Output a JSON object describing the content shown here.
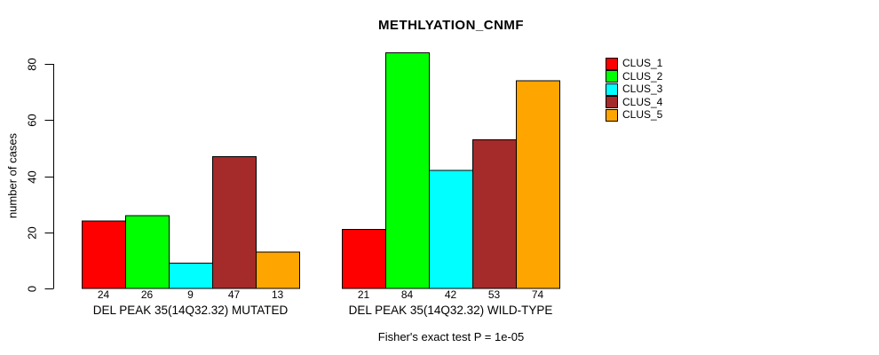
{
  "chart_data": {
    "type": "bar",
    "title": "METHLYATION_CNMF",
    "ylabel": "number of cases",
    "xlabel": "",
    "ylim": [
      0,
      80
    ],
    "yticks": [
      "0",
      "20",
      "40",
      "60",
      "80"
    ],
    "grid": false,
    "legend_position": "right-outside",
    "bar_border_color": "#000000",
    "series": [
      {
        "name": "CLUS_1",
        "color": "#FF0000"
      },
      {
        "name": "CLUS_2",
        "color": "#00FF00"
      },
      {
        "name": "CLUS_3",
        "color": "#00FFFF"
      },
      {
        "name": "CLUS_4",
        "color": "#A52A2A"
      },
      {
        "name": "CLUS_5",
        "color": "#FFA500"
      }
    ],
    "groups": [
      {
        "label": "DEL PEAK 35(14Q32.32) MUTATED",
        "values": [
          24,
          26,
          9,
          47,
          13
        ]
      },
      {
        "label": "DEL PEAK 35(14Q32.32) WILD-TYPE",
        "values": [
          21,
          84,
          42,
          53,
          74
        ]
      }
    ],
    "footnote": "Fisher's exact test P = 1e-05"
  }
}
